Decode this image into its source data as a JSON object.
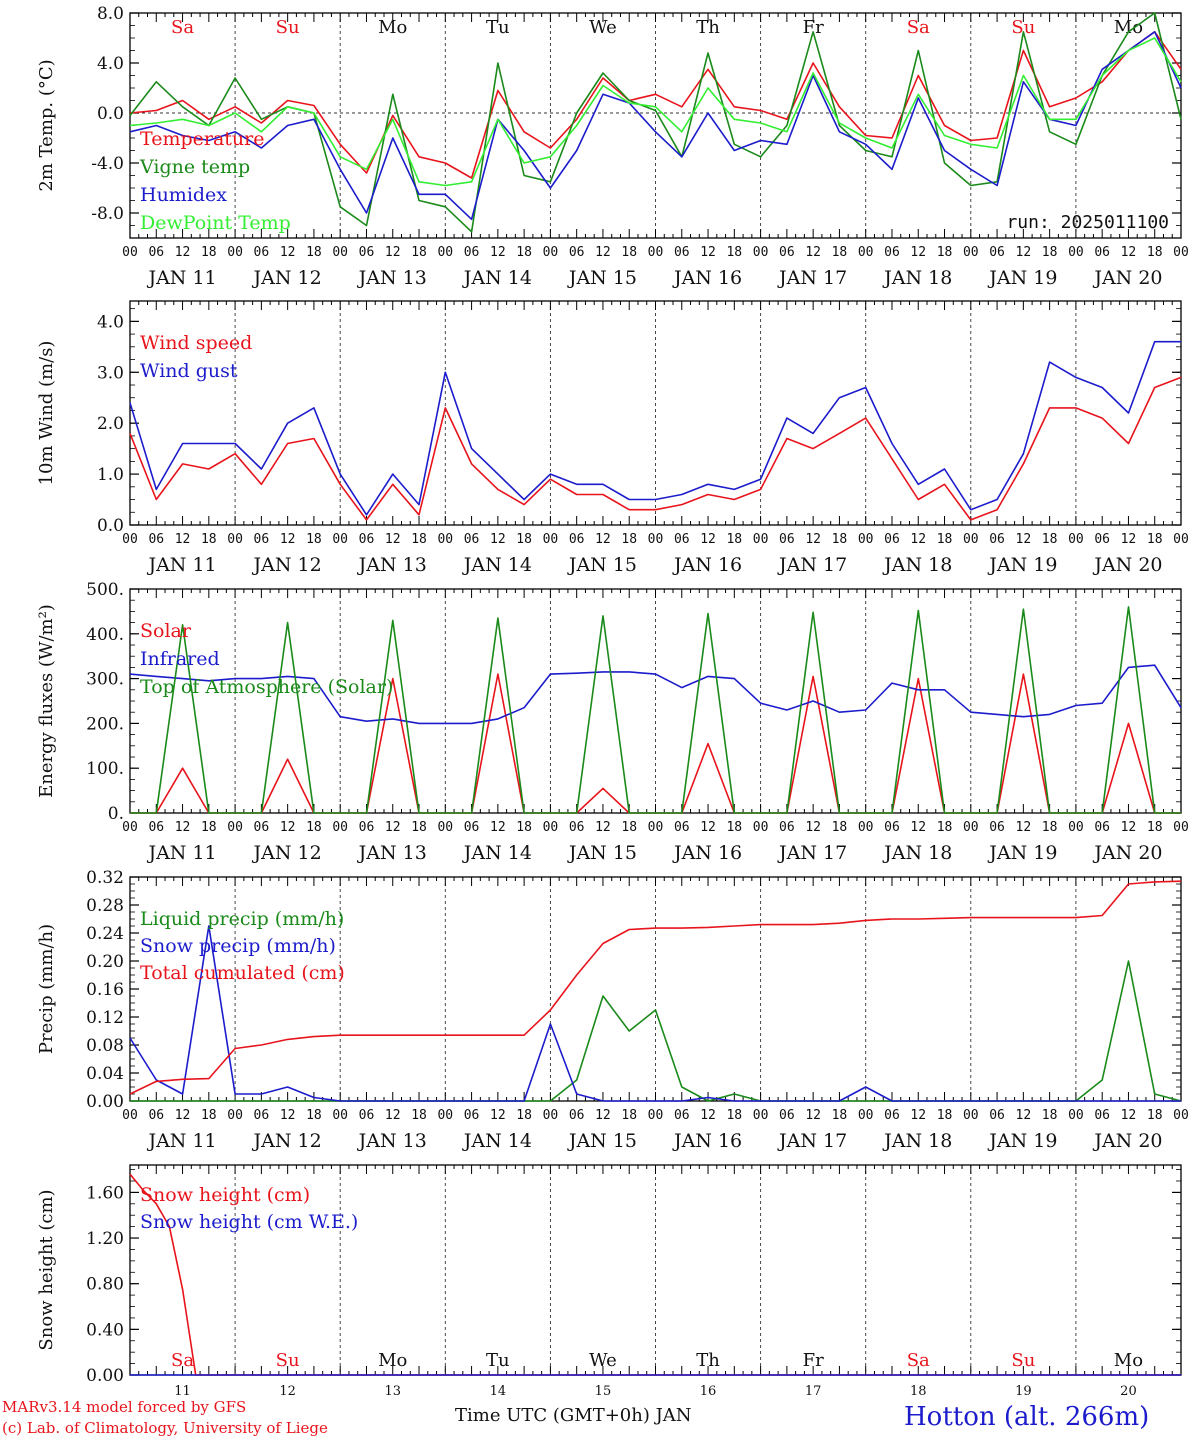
{
  "colors": {
    "red": "#e8141c",
    "green": "#1a8a1a",
    "blue": "#1c1ccc",
    "lightgreen": "#33ee33",
    "weekend": "#e8141c",
    "weekday": "#111111"
  },
  "days": [
    {
      "name": "Sa",
      "date": "11",
      "weekend": true
    },
    {
      "name": "Su",
      "date": "12",
      "weekend": true
    },
    {
      "name": "Mo",
      "date": "13",
      "weekend": false
    },
    {
      "name": "Tu",
      "date": "14",
      "weekend": false
    },
    {
      "name": "We",
      "date": "15",
      "weekend": false
    },
    {
      "name": "Th",
      "date": "16",
      "weekend": false
    },
    {
      "name": "Fr",
      "date": "17",
      "weekend": false
    },
    {
      "name": "Sa",
      "date": "18",
      "weekend": true
    },
    {
      "name": "Su",
      "date": "19",
      "weekend": true
    },
    {
      "name": "Mo",
      "date": "20",
      "weekend": false
    }
  ],
  "day_labels": [
    "JAN 11",
    "JAN 12",
    "JAN 13",
    "JAN 14",
    "JAN 15",
    "JAN 16",
    "JAN 17",
    "JAN 18",
    "JAN 19",
    "JAN 20"
  ],
  "hour_ticks": [
    "00",
    "06",
    "12",
    "18"
  ],
  "footer": {
    "model": "MARv3.14 model forced by GFS",
    "credit": "(c) Lab. of Climatology, University of Liege",
    "xlabel": "Time UTC (GMT+0h) JAN",
    "station": "Hotton (alt. 266m)"
  },
  "chart_data": [
    {
      "type": "line",
      "ylabel": "2m Temp. (°C)",
      "ylim": [
        -10,
        8
      ],
      "yticks": [
        "8.0",
        "4.0",
        "0.0",
        "-4.0",
        "-8.0"
      ],
      "zero_line": true,
      "annotation": "run: 2025011100",
      "x_hours": [
        0,
        6,
        12,
        18,
        24,
        30,
        36,
        42,
        48,
        54,
        60,
        66,
        72,
        78,
        84,
        90,
        96,
        102,
        108,
        114,
        120,
        126,
        132,
        138,
        144,
        150,
        156,
        162,
        168,
        174,
        180,
        186,
        192,
        198,
        204,
        210,
        216,
        222,
        228,
        234,
        240
      ],
      "series": [
        {
          "name": "Temperature",
          "color": "#e8141c",
          "values": [
            0.0,
            0.2,
            1.0,
            -0.5,
            0.5,
            -0.8,
            1.0,
            0.6,
            -2.5,
            -4.8,
            -0.2,
            -3.5,
            -4.0,
            -5.2,
            1.8,
            -1.5,
            -2.8,
            -0.5,
            2.8,
            1.0,
            1.5,
            0.5,
            3.5,
            0.5,
            0.2,
            -0.5,
            4.0,
            0.5,
            -1.8,
            -2.0,
            3.0,
            -1.0,
            -2.2,
            -2.0,
            5.0,
            0.5,
            1.2,
            2.5,
            5.0,
            6.5,
            3.5
          ]
        },
        {
          "name": "Vigne temp",
          "color": "#1a8a1a",
          "values": [
            -0.2,
            2.5,
            0.5,
            -1.0,
            2.8,
            -0.5,
            0.5,
            0.0,
            -7.5,
            -9.0,
            1.5,
            -7.0,
            -7.5,
            -9.5,
            4.0,
            -5.0,
            -5.5,
            0.0,
            3.2,
            1.0,
            0.2,
            -3.5,
            4.8,
            -2.5,
            -3.5,
            -1.0,
            6.5,
            -1.0,
            -3.0,
            -3.5,
            5.0,
            -4.0,
            -5.8,
            -5.5,
            6.5,
            -1.5,
            -2.5,
            3.0,
            6.5,
            8.0,
            -0.5
          ]
        },
        {
          "name": "Humidex",
          "color": "#1c1ccc",
          "values": [
            -1.5,
            -1.0,
            -1.8,
            -2.2,
            -1.5,
            -2.8,
            -1.0,
            -0.5,
            -4.5,
            -8.0,
            -2.0,
            -6.5,
            -6.5,
            -8.5,
            -0.5,
            -3.0,
            -6.0,
            -3.0,
            1.5,
            0.8,
            -1.5,
            -3.5,
            0.0,
            -3.0,
            -2.2,
            -2.5,
            3.0,
            -1.5,
            -2.5,
            -4.5,
            1.2,
            -3.0,
            -4.5,
            -5.8,
            2.5,
            -0.5,
            -1.0,
            3.5,
            5.0,
            6.5,
            2.0
          ]
        },
        {
          "name": "DewPoint Temp",
          "color": "#33ee33",
          "values": [
            -1.0,
            -0.8,
            -0.5,
            -1.0,
            0.0,
            -1.5,
            0.5,
            0.0,
            -3.5,
            -4.5,
            -0.5,
            -5.5,
            -5.8,
            -5.5,
            -0.5,
            -4.0,
            -3.5,
            -1.0,
            2.2,
            0.8,
            0.5,
            -1.5,
            2.0,
            -0.5,
            -0.8,
            -1.5,
            3.2,
            -0.8,
            -2.0,
            -2.8,
            1.5,
            -1.8,
            -2.5,
            -2.8,
            3.0,
            -0.5,
            -0.5,
            3.0,
            5.0,
            6.0,
            2.5
          ]
        }
      ]
    },
    {
      "type": "line",
      "ylabel": "10m Wind (m/s)",
      "ylim": [
        0,
        4.4
      ],
      "yticks": [
        "4.0",
        "3.0",
        "2.0",
        "1.0",
        "0.0"
      ],
      "x_hours": [
        0,
        6,
        12,
        18,
        24,
        30,
        36,
        42,
        48,
        54,
        60,
        66,
        72,
        78,
        84,
        90,
        96,
        102,
        108,
        114,
        120,
        126,
        132,
        138,
        144,
        150,
        156,
        162,
        168,
        174,
        180,
        186,
        192,
        198,
        204,
        210,
        216,
        222,
        228,
        234,
        240
      ],
      "series": [
        {
          "name": "Wind speed",
          "color": "#e8141c",
          "values": [
            1.8,
            0.5,
            1.2,
            1.1,
            1.4,
            0.8,
            1.6,
            1.7,
            0.8,
            0.1,
            0.8,
            0.2,
            2.3,
            1.2,
            0.7,
            0.4,
            0.9,
            0.6,
            0.6,
            0.3,
            0.3,
            0.4,
            0.6,
            0.5,
            0.7,
            1.7,
            1.5,
            1.8,
            2.1,
            1.3,
            0.5,
            0.8,
            0.1,
            0.3,
            1.2,
            2.3,
            2.3,
            2.1,
            1.6,
            2.7,
            2.9
          ]
        },
        {
          "name": "Wind gust",
          "color": "#1c1ccc",
          "values": [
            2.4,
            0.7,
            1.6,
            1.6,
            1.6,
            1.1,
            2.0,
            2.3,
            1.0,
            0.2,
            1.0,
            0.4,
            3.0,
            1.5,
            1.0,
            0.5,
            1.0,
            0.8,
            0.8,
            0.5,
            0.5,
            0.6,
            0.8,
            0.7,
            0.9,
            2.1,
            1.8,
            2.5,
            2.7,
            1.6,
            0.8,
            1.1,
            0.3,
            0.5,
            1.4,
            3.2,
            2.9,
            2.7,
            2.2,
            3.6,
            3.6
          ]
        }
      ]
    },
    {
      "type": "line",
      "ylabel": "Energy fluxes (W/m²)",
      "ylim": [
        0,
        500
      ],
      "yticks": [
        "500.",
        "400.",
        "300.",
        "200.",
        "100.",
        "0."
      ],
      "x_hours": [
        0,
        6,
        12,
        18,
        24,
        30,
        36,
        42,
        48,
        54,
        60,
        66,
        72,
        78,
        84,
        90,
        96,
        102,
        108,
        114,
        120,
        126,
        132,
        138,
        144,
        150,
        156,
        162,
        168,
        174,
        180,
        186,
        192,
        198,
        204,
        210,
        216,
        222,
        228,
        234,
        240
      ],
      "series": [
        {
          "name": "Solar",
          "color": "#e8141c",
          "values": [
            0,
            0,
            100,
            0,
            0,
            0,
            120,
            0,
            0,
            0,
            300,
            0,
            0,
            0,
            310,
            0,
            0,
            0,
            55,
            0,
            0,
            0,
            155,
            0,
            0,
            0,
            305,
            0,
            0,
            0,
            300,
            0,
            0,
            0,
            310,
            0,
            0,
            0,
            200,
            0,
            0
          ]
        },
        {
          "name": "Infrared",
          "color": "#1c1ccc",
          "values": [
            310,
            305,
            300,
            295,
            300,
            300,
            305,
            300,
            215,
            205,
            210,
            200,
            200,
            200,
            210,
            235,
            310,
            312,
            315,
            315,
            310,
            280,
            305,
            300,
            245,
            230,
            250,
            225,
            230,
            290,
            275,
            275,
            225,
            220,
            215,
            220,
            240,
            245,
            325,
            330,
            235
          ]
        },
        {
          "name": "Top of Atmosphere (Solar)",
          "color": "#1a8a1a",
          "values": [
            0,
            0,
            420,
            0,
            0,
            0,
            425,
            0,
            0,
            0,
            430,
            0,
            0,
            0,
            435,
            0,
            0,
            0,
            440,
            0,
            0,
            0,
            445,
            0,
            0,
            0,
            448,
            0,
            0,
            0,
            452,
            0,
            0,
            0,
            455,
            0,
            0,
            0,
            460,
            0,
            0
          ]
        }
      ]
    },
    {
      "type": "line",
      "ylabel": "Precip (mm/h)",
      "ylim": [
        0,
        0.32
      ],
      "yticks": [
        "0.32",
        "0.28",
        "0.24",
        "0.20",
        "0.16",
        "0.12",
        "0.08",
        "0.04",
        "0.00"
      ],
      "x_hours": [
        0,
        6,
        12,
        18,
        24,
        30,
        36,
        42,
        48,
        54,
        60,
        66,
        72,
        78,
        84,
        90,
        96,
        102,
        108,
        114,
        120,
        126,
        132,
        138,
        144,
        150,
        156,
        162,
        168,
        174,
        180,
        186,
        192,
        198,
        204,
        210,
        216,
        222,
        228,
        234,
        240
      ],
      "series": [
        {
          "name": "Liquid precip (mm/h)",
          "color": "#1a8a1a",
          "values": [
            0,
            0,
            0,
            0,
            0,
            0,
            0,
            0,
            0,
            0,
            0,
            0,
            0,
            0,
            0,
            0,
            0,
            0.03,
            0.15,
            0.1,
            0.13,
            0.02,
            0,
            0.01,
            0,
            0,
            0,
            0,
            0,
            0,
            0,
            0,
            0,
            0,
            0,
            0,
            0,
            0.03,
            0.2,
            0.01,
            0
          ]
        },
        {
          "name": "Snow precip (mm/h)",
          "color": "#1c1ccc",
          "values": [
            0.09,
            0.03,
            0.01,
            0.25,
            0.01,
            0.01,
            0.02,
            0.005,
            0,
            0,
            0,
            0,
            0,
            0,
            0,
            0,
            0.11,
            0.01,
            0,
            0,
            0,
            0,
            0.005,
            0,
            0,
            0,
            0,
            0,
            0.02,
            0,
            0,
            0,
            0,
            0,
            0,
            0,
            0,
            0,
            0,
            0,
            0
          ]
        },
        {
          "name": "Total cumulated (cm)",
          "color": "#e8141c",
          "values": [
            0.01,
            0.028,
            0.031,
            0.032,
            0.075,
            0.08,
            0.088,
            0.092,
            0.094,
            0.094,
            0.094,
            0.094,
            0.094,
            0.094,
            0.094,
            0.094,
            0.13,
            0.18,
            0.225,
            0.245,
            0.247,
            0.247,
            0.248,
            0.25,
            0.252,
            0.252,
            0.252,
            0.254,
            0.258,
            0.26,
            0.26,
            0.261,
            0.262,
            0.262,
            0.262,
            0.262,
            0.262,
            0.265,
            0.31,
            0.313,
            0.314
          ]
        }
      ]
    },
    {
      "type": "line",
      "ylabel": "Snow height (cm)",
      "ylim": [
        0,
        1.84
      ],
      "yticks": [
        "1.60",
        "1.20",
        "0.80",
        "0.40",
        "0.00"
      ],
      "x_hours": [
        0,
        3,
        6,
        9,
        12,
        15,
        18,
        21,
        24,
        240
      ],
      "series": [
        {
          "name": "Snow height (cm)",
          "color": "#e8141c",
          "values": [
            1.76,
            1.62,
            1.5,
            1.3,
            0.75,
            0,
            0,
            0,
            0,
            0
          ]
        },
        {
          "name": "Snow height (cm W.E.)",
          "color": "#1c1ccc",
          "values": [
            0,
            0,
            0,
            0,
            0,
            0,
            0,
            0,
            0,
            0
          ]
        }
      ]
    }
  ]
}
